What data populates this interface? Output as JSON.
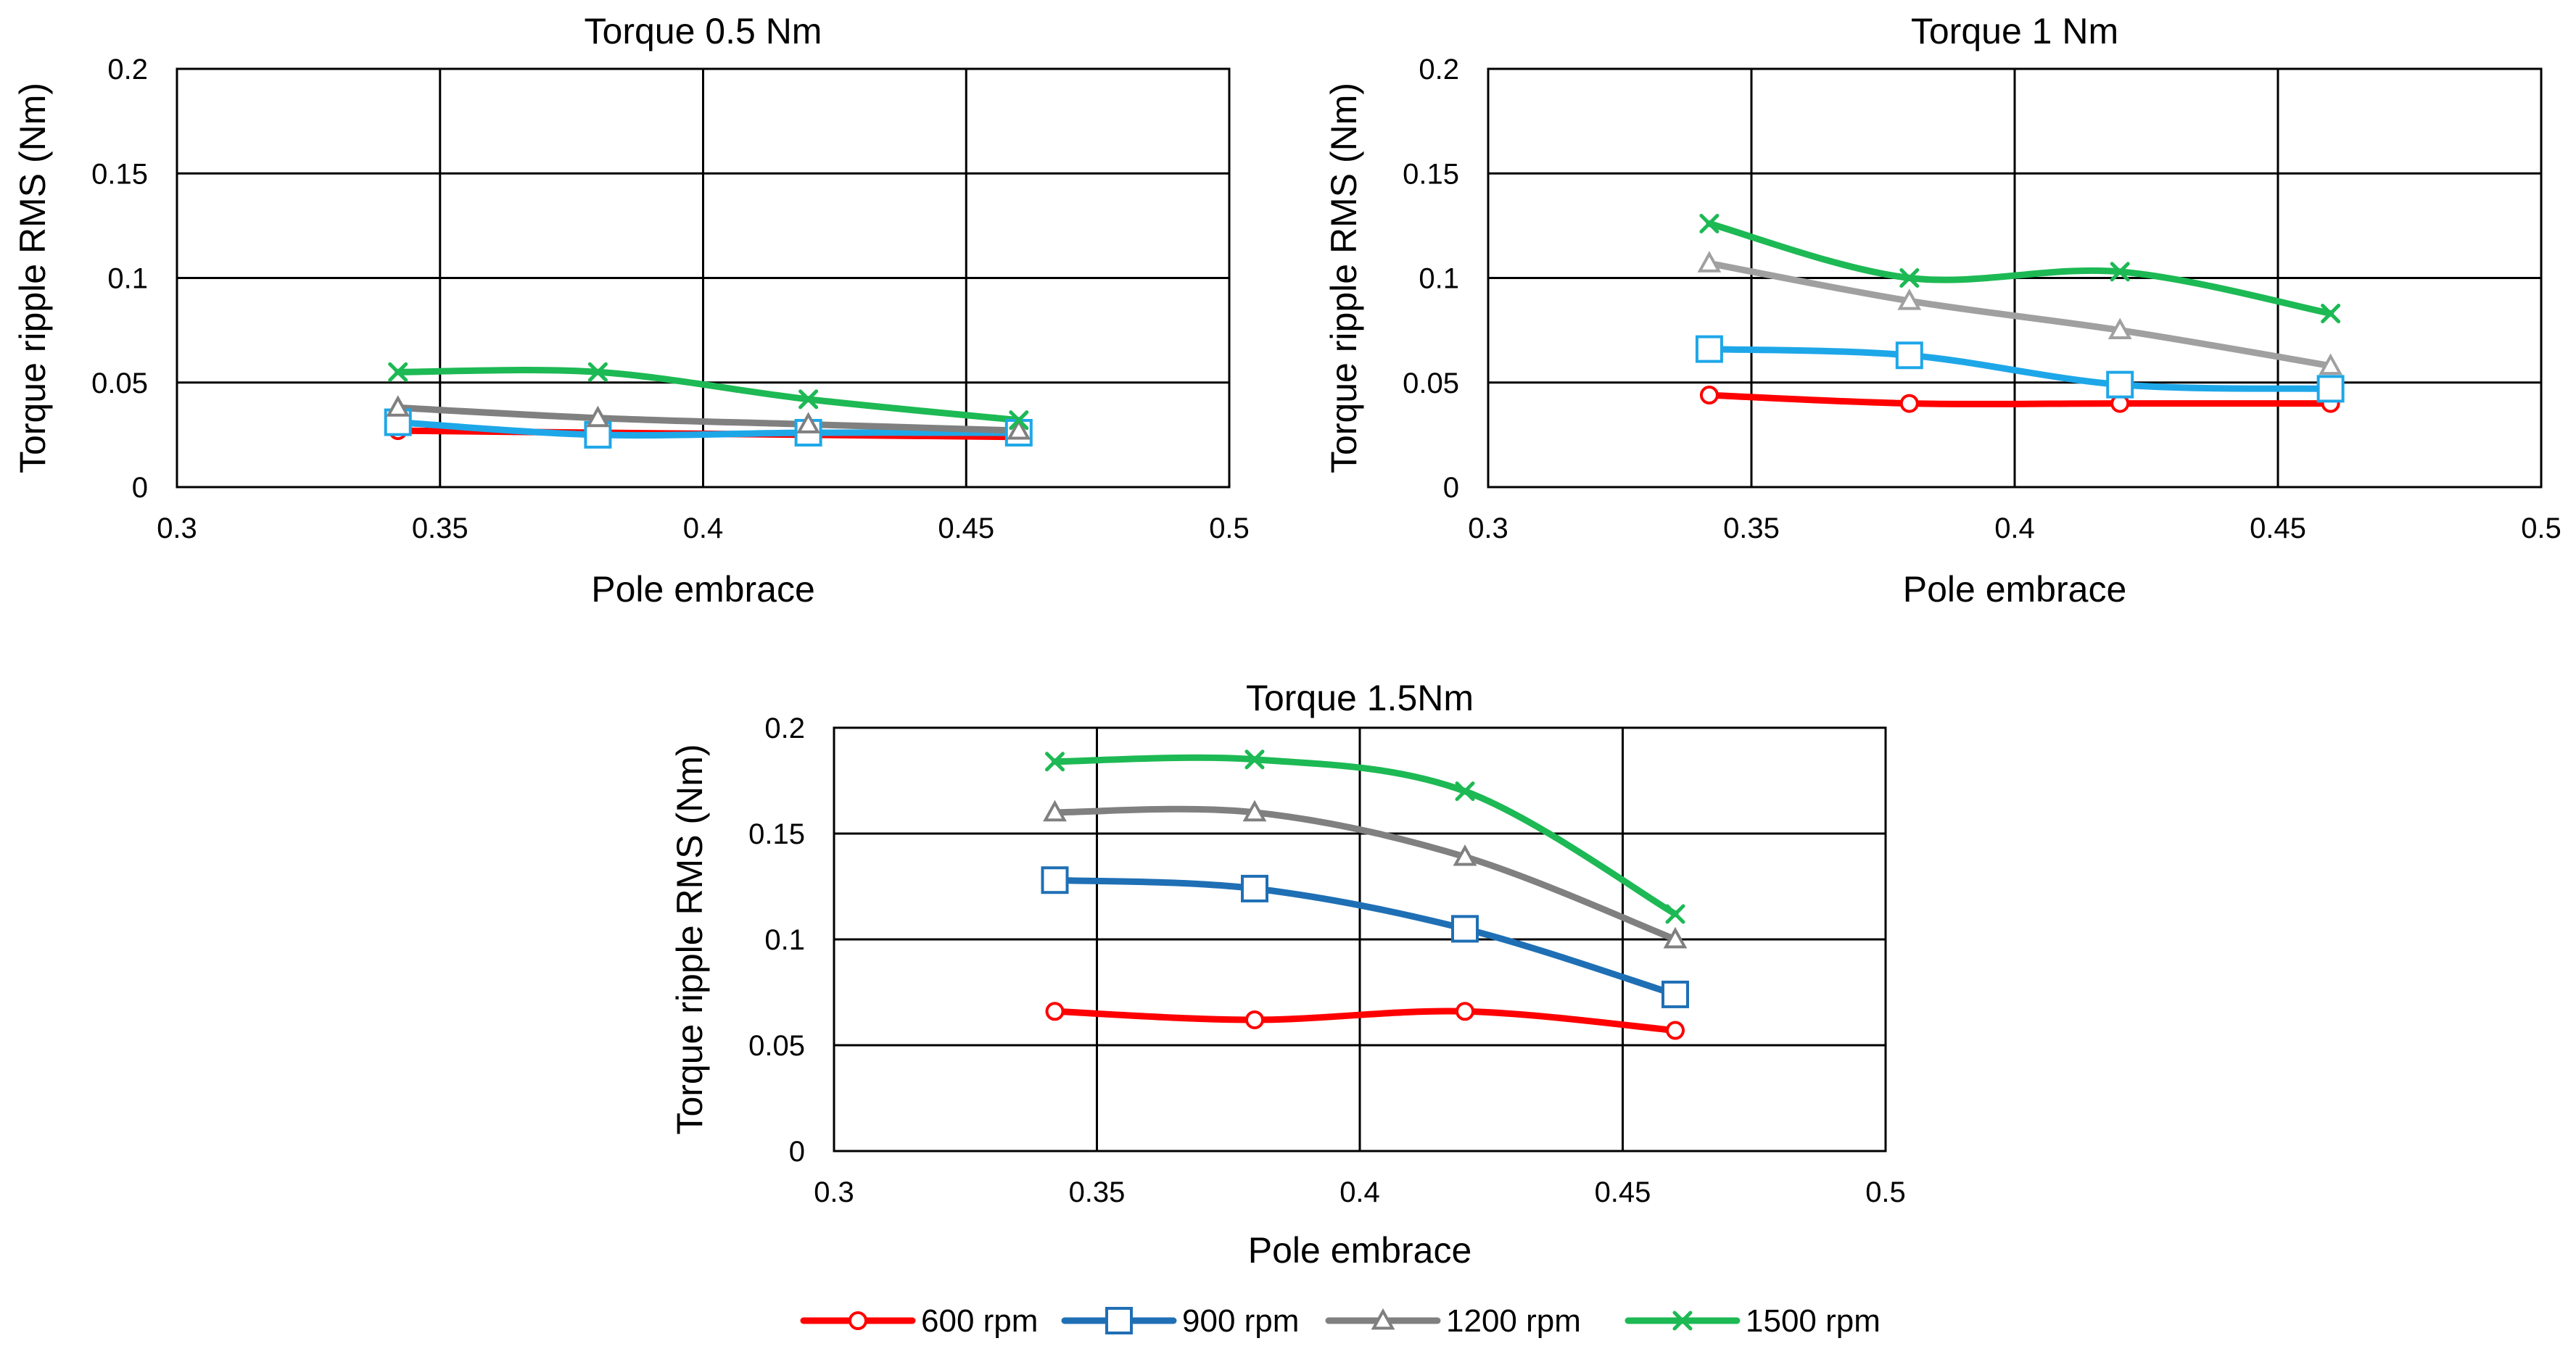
{
  "series_styles": [
    {
      "key": "600",
      "color": "#ff0000",
      "marker": "circle"
    },
    {
      "key": "900",
      "color": "#1f77b4",
      "marker": "square"
    },
    {
      "key": "1200",
      "color": "#808080",
      "marker": "triangle"
    },
    {
      "key": "1500",
      "color": "#1db954",
      "marker": "x"
    }
  ],
  "legend": {
    "entries": [
      {
        "label": "600 rpm",
        "color": "#ff0000",
        "marker": "circle"
      },
      {
        "label": "900 rpm",
        "color": "#1f6fb5",
        "marker": "square"
      },
      {
        "label": "1200 rpm",
        "color": "#808080",
        "marker": "triangle"
      },
      {
        "label": "1500 rpm",
        "color": "#1db954",
        "marker": "x"
      }
    ]
  },
  "chart_data": [
    {
      "type": "line",
      "title": "Torque 0.5 Nm",
      "xlabel": "Pole embrace",
      "ylabel": "Torque ripple RMS  (Nm)",
      "xlim": [
        0.3,
        0.5
      ],
      "ylim": [
        0,
        0.2
      ],
      "xticks": [
        "0.3",
        "0.35",
        "0.4",
        "0.45",
        "0.5"
      ],
      "yticks": [
        "0",
        "0.05",
        "0.1",
        "0.15",
        "0.2"
      ],
      "x": [
        0.342,
        0.38,
        0.42,
        0.46
      ],
      "series": [
        {
          "name": "600 rpm",
          "color": "#ff0000",
          "marker": "circle",
          "values": [
            0.027,
            0.026,
            0.025,
            0.024
          ]
        },
        {
          "name": "900 rpm",
          "color": "#1ea7e8",
          "marker": "square",
          "values": [
            0.031,
            0.025,
            0.026,
            0.026
          ]
        },
        {
          "name": "1200 rpm",
          "color": "#808080",
          "marker": "triangle",
          "values": [
            0.038,
            0.033,
            0.03,
            0.027
          ]
        },
        {
          "name": "1500 rpm",
          "color": "#1db954",
          "marker": "x",
          "values": [
            0.055,
            0.055,
            0.042,
            0.032
          ]
        }
      ]
    },
    {
      "type": "line",
      "title": "Torque 1 Nm",
      "xlabel": "Pole embrace",
      "ylabel": "Torque ripple RMS  (Nm)",
      "xlim": [
        0.3,
        0.5
      ],
      "ylim": [
        0,
        0.2
      ],
      "xticks": [
        "0.3",
        "0.35",
        "0.4",
        "0.45",
        "0.5"
      ],
      "yticks": [
        "0",
        "0.05",
        "0.1",
        "0.15",
        "0.2"
      ],
      "x": [
        0.342,
        0.38,
        0.42,
        0.46
      ],
      "series": [
        {
          "name": "600 rpm",
          "color": "#ff0000",
          "marker": "circle",
          "values": [
            0.044,
            0.04,
            0.04,
            0.04
          ]
        },
        {
          "name": "900 rpm",
          "color": "#1ea7e8",
          "marker": "square",
          "values": [
            0.066,
            0.063,
            0.049,
            0.047
          ]
        },
        {
          "name": "1200 rpm",
          "color": "#a0a0a0",
          "marker": "triangle",
          "values": [
            0.107,
            0.089,
            0.075,
            0.058
          ]
        },
        {
          "name": "1500 rpm",
          "color": "#1db954",
          "marker": "x",
          "values": [
            0.126,
            0.1,
            0.103,
            0.083
          ]
        }
      ]
    },
    {
      "type": "line",
      "title": "Torque 1.5Nm",
      "xlabel": "Pole embrace",
      "ylabel": "Torque ripple RMS  (Nm)",
      "xlim": [
        0.3,
        0.5
      ],
      "ylim": [
        0,
        0.2
      ],
      "xticks": [
        "0.3",
        "0.35",
        "0.4",
        "0.45",
        "0.5"
      ],
      "yticks": [
        "0",
        "0.05",
        "0.1",
        "0.15",
        "0.2"
      ],
      "x": [
        0.342,
        0.38,
        0.42,
        0.46
      ],
      "series": [
        {
          "name": "600 rpm",
          "color": "#ff0000",
          "marker": "circle",
          "values": [
            0.066,
            0.062,
            0.066,
            0.057
          ]
        },
        {
          "name": "900 rpm",
          "color": "#1f6fb5",
          "marker": "square",
          "values": [
            0.128,
            0.124,
            0.105,
            0.074
          ]
        },
        {
          "name": "1200 rpm",
          "color": "#808080",
          "marker": "triangle",
          "values": [
            0.16,
            0.16,
            0.139,
            0.1
          ]
        },
        {
          "name": "1500 rpm",
          "color": "#1db954",
          "marker": "x",
          "values": [
            0.184,
            0.185,
            0.17,
            0.112
          ]
        }
      ]
    }
  ]
}
